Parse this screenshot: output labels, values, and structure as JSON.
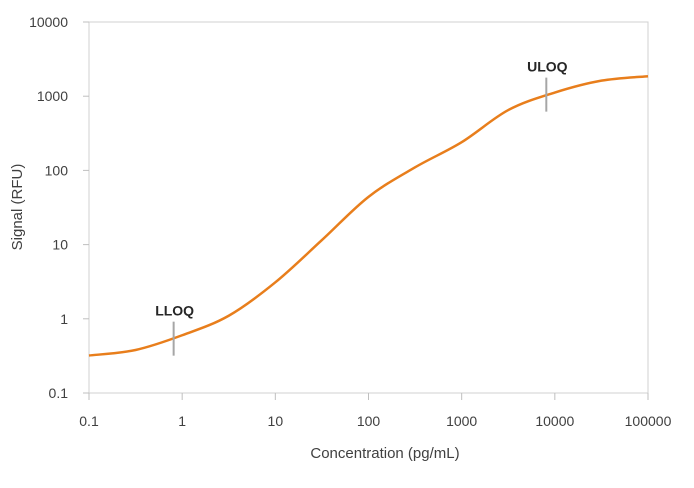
{
  "chart_data": {
    "type": "line",
    "title": "",
    "xlabel": "Concentration (pg/mL)",
    "ylabel": "Signal (RFU)",
    "xscale": "log",
    "yscale": "log",
    "xlim": [
      0.1,
      100000
    ],
    "ylim": [
      0.1,
      10000
    ],
    "grid": false,
    "legend": "none",
    "x_ticks": [
      "0.1",
      "1",
      "10",
      "100",
      "1000",
      "10000",
      "100000"
    ],
    "y_ticks": [
      "0.1",
      "1",
      "10",
      "100",
      "1000",
      "10000"
    ],
    "series": [
      {
        "color": "#E87E1C",
        "x": [
          0.1,
          0.316,
          1,
          3.16,
          10,
          31.6,
          100,
          316,
          1000,
          3162,
          10000,
          31623,
          100000
        ],
        "y": [
          0.32,
          0.38,
          0.6,
          1.1,
          3.1,
          11.5,
          44,
          110,
          240,
          650,
          1120,
          1620,
          1860
        ]
      }
    ],
    "annotations": [
      {
        "label": "LLOQ",
        "x": 0.81,
        "y": 0.54
      },
      {
        "label": "ULOQ",
        "x": 8100,
        "y": 1050
      }
    ]
  }
}
